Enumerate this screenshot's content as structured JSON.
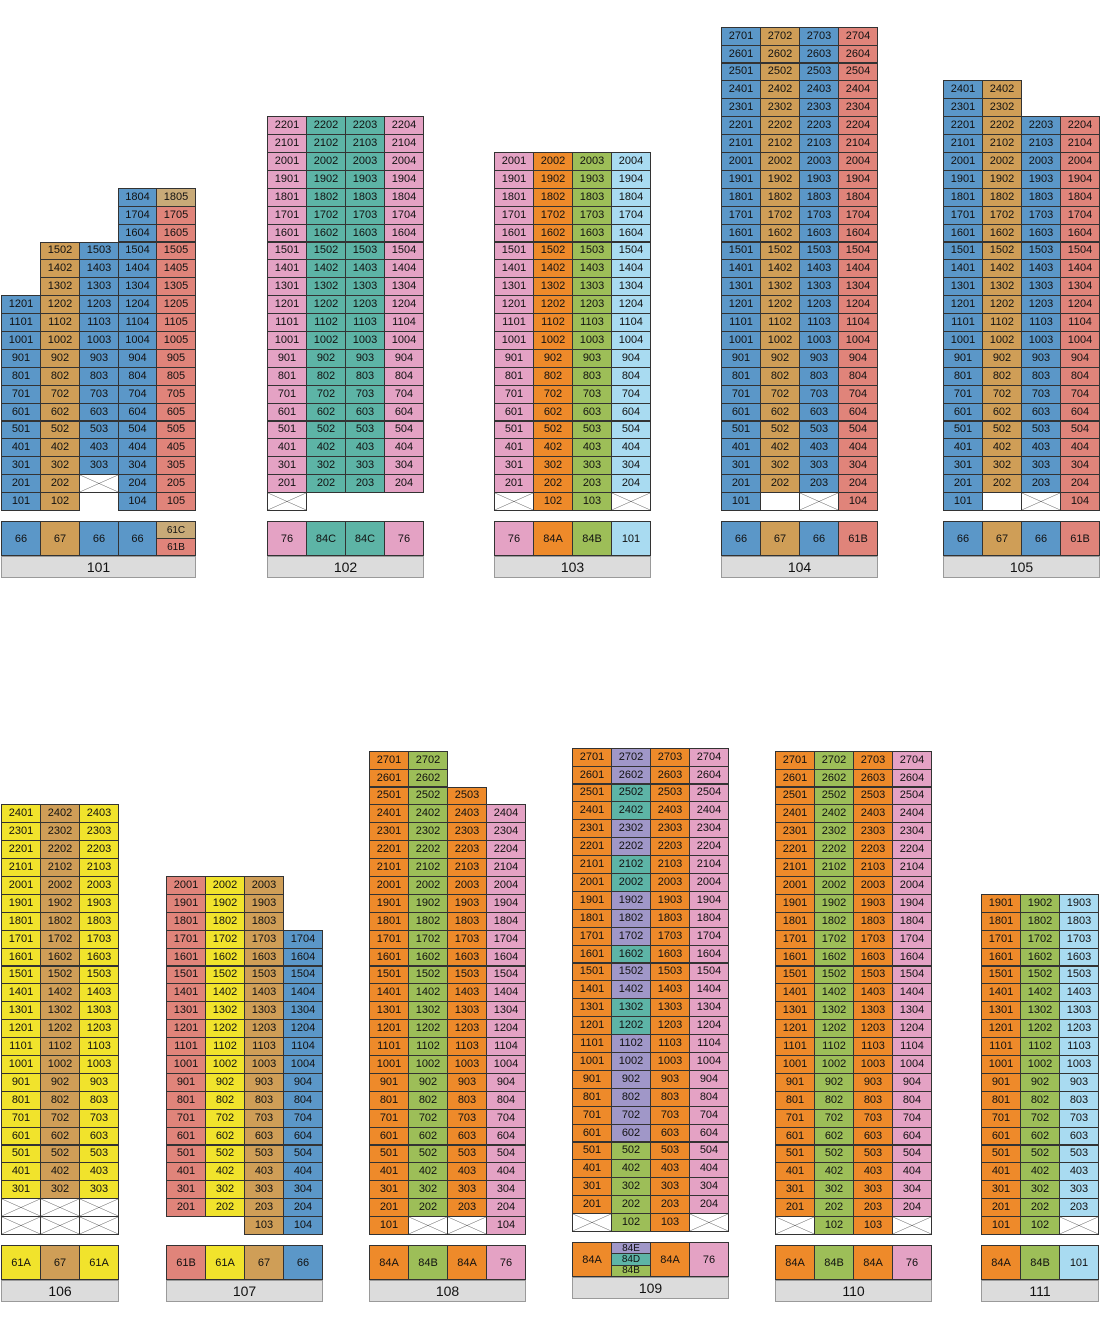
{
  "colors": {
    "blue": "#5b97c8",
    "tan": "#cf9e57",
    "pink": "#e4a2c4",
    "red": "#e0847a",
    "teal": "#5db4a6",
    "orange": "#ee8a2a",
    "green": "#9dbe58",
    "sky": "#a9dbf1",
    "yellow": "#f1e32c",
    "purple": "#a097c8",
    "khaki": "#c8aa78"
  },
  "buildings": [
    {
      "label": "101",
      "columns": [
        {
          "color": "blue",
          "min": 1,
          "max": 12,
          "empty": [],
          "blank": [],
          "unitCol": 1
        },
        {
          "color": "tan",
          "min": 1,
          "max": 15,
          "empty": [],
          "blank": [],
          "unitCol": 2
        },
        {
          "color": "blue",
          "min": 2,
          "max": 15,
          "empty": [
            2
          ],
          "blank": [],
          "unitCol": 3
        },
        {
          "color": "blue",
          "min": 1,
          "max": 18,
          "empty": [],
          "blank": [],
          "unitCol": 4
        },
        {
          "color": "red",
          "min": 1,
          "max": 18,
          "empty": [],
          "blank": [],
          "unitCol": 5,
          "special": {
            "18": "khaki"
          }
        }
      ],
      "types": [
        {
          "label": "66",
          "color": "blue"
        },
        {
          "label": "67",
          "color": "tan"
        },
        {
          "label": "66",
          "color": "blue"
        },
        {
          "label": "66",
          "color": "blue"
        },
        {
          "stack": [
            {
              "label": "61C",
              "color": "khaki"
            },
            {
              "label": "61B",
              "color": "red"
            }
          ]
        }
      ]
    },
    {
      "label": "102",
      "columns": [
        {
          "color": "pink",
          "min": 1,
          "max": 22,
          "empty": [
            1
          ],
          "blank": [],
          "unitCol": 1
        },
        {
          "color": "teal",
          "min": 2,
          "max": 22,
          "empty": [],
          "blank": [],
          "unitCol": 2
        },
        {
          "color": "teal",
          "min": 2,
          "max": 22,
          "empty": [],
          "blank": [],
          "unitCol": 3
        },
        {
          "color": "pink",
          "min": 2,
          "max": 22,
          "empty": [],
          "blank": [],
          "unitCol": 4
        }
      ],
      "types": [
        {
          "label": "76",
          "color": "pink"
        },
        {
          "label": "84C",
          "color": "teal"
        },
        {
          "label": "84C",
          "color": "teal"
        },
        {
          "label": "76",
          "color": "pink"
        }
      ]
    },
    {
      "label": "103",
      "columns": [
        {
          "color": "pink",
          "min": 1,
          "max": 20,
          "empty": [
            1
          ],
          "blank": [],
          "unitCol": 1
        },
        {
          "color": "orange",
          "min": 1,
          "max": 20,
          "empty": [],
          "blank": [],
          "unitCol": 2
        },
        {
          "color": "green",
          "min": 1,
          "max": 20,
          "empty": [],
          "blank": [],
          "unitCol": 3
        },
        {
          "color": "sky",
          "min": 1,
          "max": 20,
          "empty": [
            1
          ],
          "blank": [],
          "unitCol": 4
        }
      ],
      "types": [
        {
          "label": "76",
          "color": "pink"
        },
        {
          "label": "84A",
          "color": "orange"
        },
        {
          "label": "84B",
          "color": "green"
        },
        {
          "label": "101",
          "color": "sky"
        }
      ]
    },
    {
      "label": "104",
      "columns": [
        {
          "color": "blue",
          "min": 1,
          "max": 27,
          "empty": [],
          "blank": [],
          "unitCol": 1
        },
        {
          "color": "tan",
          "min": 1,
          "max": 27,
          "empty": [],
          "blank": [
            1
          ],
          "unitCol": 2
        },
        {
          "color": "blue",
          "min": 1,
          "max": 27,
          "empty": [
            1
          ],
          "blank": [],
          "unitCol": 3
        },
        {
          "color": "red",
          "min": 1,
          "max": 27,
          "empty": [],
          "blank": [],
          "unitCol": 4
        }
      ],
      "types": [
        {
          "label": "66",
          "color": "blue"
        },
        {
          "label": "67",
          "color": "tan"
        },
        {
          "label": "66",
          "color": "blue"
        },
        {
          "label": "61B",
          "color": "red"
        }
      ]
    },
    {
      "label": "105",
      "columns": [
        {
          "color": "blue",
          "min": 1,
          "max": 24,
          "empty": [],
          "blank": [],
          "unitCol": 1
        },
        {
          "color": "tan",
          "min": 1,
          "max": 24,
          "empty": [],
          "blank": [
            1
          ],
          "unitCol": 2
        },
        {
          "color": "blue",
          "min": 1,
          "max": 22,
          "empty": [
            1
          ],
          "blank": [],
          "unitCol": 3
        },
        {
          "color": "red",
          "min": 1,
          "max": 22,
          "empty": [],
          "blank": [],
          "unitCol": 4
        }
      ],
      "types": [
        {
          "label": "66",
          "color": "blue"
        },
        {
          "label": "67",
          "color": "tan"
        },
        {
          "label": "66",
          "color": "blue"
        },
        {
          "label": "61B",
          "color": "red"
        }
      ]
    },
    {
      "label": "106",
      "columns": [
        {
          "color": "yellow",
          "min": 1,
          "max": 24,
          "empty": [
            1,
            2
          ],
          "blank": [],
          "unitCol": 1
        },
        {
          "color": "tan",
          "min": 1,
          "max": 24,
          "empty": [
            1,
            2
          ],
          "blank": [],
          "unitCol": 2
        },
        {
          "color": "yellow",
          "min": 1,
          "max": 24,
          "empty": [
            1,
            2
          ],
          "blank": [],
          "unitCol": 3
        }
      ],
      "types": [
        {
          "label": "61A",
          "color": "yellow"
        },
        {
          "label": "67",
          "color": "tan"
        },
        {
          "label": "61A",
          "color": "yellow"
        }
      ]
    },
    {
      "label": "107",
      "columns": [
        {
          "color": "red",
          "min": 2,
          "max": 20,
          "empty": [],
          "blank": [],
          "unitCol": 1
        },
        {
          "color": "yellow",
          "min": 2,
          "max": 20,
          "empty": [],
          "blank": [],
          "unitCol": 2
        },
        {
          "color": "tan",
          "min": 1,
          "max": 20,
          "empty": [],
          "blank": [],
          "unitCol": 3
        },
        {
          "color": "blue",
          "min": 1,
          "max": 17,
          "empty": [],
          "blank": [],
          "unitCol": 4
        }
      ],
      "types": [
        {
          "label": "61B",
          "color": "red"
        },
        {
          "label": "61A",
          "color": "yellow"
        },
        {
          "label": "67",
          "color": "tan"
        },
        {
          "label": "66",
          "color": "blue"
        }
      ]
    },
    {
      "label": "108",
      "columns": [
        {
          "color": "orange",
          "min": 1,
          "max": 27,
          "empty": [],
          "blank": [],
          "unitCol": 1
        },
        {
          "color": "green",
          "min": 1,
          "max": 27,
          "empty": [
            1
          ],
          "blank": [],
          "unitCol": 2
        },
        {
          "color": "orange",
          "min": 1,
          "max": 25,
          "empty": [
            1
          ],
          "blank": [],
          "unitCol": 3
        },
        {
          "color": "pink",
          "min": 1,
          "max": 24,
          "empty": [],
          "blank": [],
          "unitCol": 4
        }
      ],
      "types": [
        {
          "label": "84A",
          "color": "orange"
        },
        {
          "label": "84B",
          "color": "green"
        },
        {
          "label": "84A",
          "color": "orange"
        },
        {
          "label": "76",
          "color": "pink"
        }
      ]
    },
    {
      "label": "109",
      "columns": [
        {
          "color": "orange",
          "min": 1,
          "max": 27,
          "empty": [
            1
          ],
          "blank": [],
          "unitCol": 1
        },
        {
          "color": "green",
          "min": 1,
          "max": 27,
          "empty": [],
          "blank": [],
          "unitCol": 2,
          "special": {
            "6": "purple",
            "7": "purple",
            "8": "purple",
            "9": "purple",
            "10": "purple",
            "11": "purple",
            "12": "teal",
            "13": "teal",
            "14": "purple",
            "15": "purple",
            "16": "teal",
            "17": "purple",
            "18": "purple",
            "19": "purple",
            "20": "teal",
            "21": "teal",
            "22": "purple",
            "23": "purple",
            "24": "teal",
            "25": "teal",
            "26": "purple",
            "27": "purple"
          }
        },
        {
          "color": "orange",
          "min": 1,
          "max": 27,
          "empty": [],
          "blank": [],
          "unitCol": 3
        },
        {
          "color": "pink",
          "min": 1,
          "max": 27,
          "empty": [
            1
          ],
          "blank": [],
          "unitCol": 4
        }
      ],
      "types": [
        {
          "label": "84A",
          "color": "orange"
        },
        {
          "stack": [
            {
              "label": "84E",
              "color": "purple"
            },
            {
              "label": "84D",
              "color": "teal"
            },
            {
              "label": "84B",
              "color": "green"
            }
          ]
        },
        {
          "label": "84A",
          "color": "orange"
        },
        {
          "label": "76",
          "color": "pink"
        }
      ]
    },
    {
      "label": "110",
      "columns": [
        {
          "color": "orange",
          "min": 1,
          "max": 27,
          "empty": [
            1
          ],
          "blank": [],
          "unitCol": 1
        },
        {
          "color": "green",
          "min": 1,
          "max": 27,
          "empty": [],
          "blank": [],
          "unitCol": 2
        },
        {
          "color": "orange",
          "min": 1,
          "max": 27,
          "empty": [],
          "blank": [],
          "unitCol": 3
        },
        {
          "color": "pink",
          "min": 1,
          "max": 27,
          "empty": [
            1
          ],
          "blank": [],
          "unitCol": 4
        }
      ],
      "types": [
        {
          "label": "84A",
          "color": "orange"
        },
        {
          "label": "84B",
          "color": "green"
        },
        {
          "label": "84A",
          "color": "orange"
        },
        {
          "label": "76",
          "color": "pink"
        }
      ]
    },
    {
      "label": "111",
      "columns": [
        {
          "color": "orange",
          "min": 1,
          "max": 19,
          "empty": [],
          "blank": [],
          "unitCol": 1
        },
        {
          "color": "green",
          "min": 1,
          "max": 19,
          "empty": [],
          "blank": [],
          "unitCol": 2
        },
        {
          "color": "sky",
          "min": 1,
          "max": 19,
          "empty": [
            1
          ],
          "blank": [],
          "unitCol": 3
        }
      ],
      "types": [
        {
          "label": "84A",
          "color": "orange"
        },
        {
          "label": "84B",
          "color": "green"
        },
        {
          "label": "101",
          "color": "sky"
        }
      ]
    }
  ]
}
